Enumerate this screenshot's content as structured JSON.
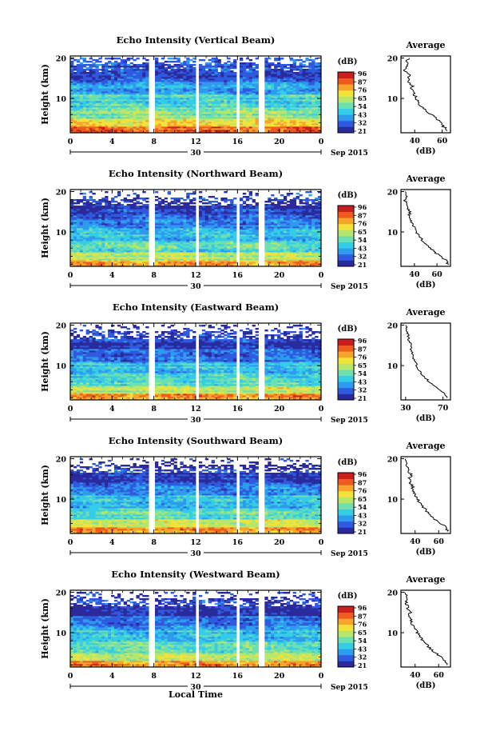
{
  "figure": {
    "xlabel_bottom": "Local Time",
    "date_label": "Sep 2015",
    "day_label": "30"
  },
  "colorbar": {
    "unit": "(dB)",
    "colors": [
      "#2a2a9c",
      "#2f5ae0",
      "#2f9bef",
      "#35cde6",
      "#6ee0b0",
      "#b6e66a",
      "#f2e23a",
      "#f7a52c",
      "#ee5a20",
      "#c81e1e"
    ]
  },
  "chart_data": [
    {
      "type": "heatmap",
      "title": "Echo Intensity (Vertical Beam)",
      "ylabel": "Height (km)",
      "xlabel": "",
      "x_ticks": [
        "0",
        "4",
        "8",
        "12",
        "16",
        "20",
        "0"
      ],
      "y_ticks": [
        "20",
        "10"
      ],
      "xlim": [
        0,
        24
      ],
      "ylim": [
        1.5,
        20.5
      ],
      "colorbar_ticks": [
        "96",
        "87",
        "76",
        "65",
        "54",
        "43",
        "32",
        "21"
      ],
      "data_gaps_hours": [
        [
          5.6,
          5.8
        ],
        [
          7.6,
          8.0
        ],
        [
          12.0,
          12.3
        ],
        [
          15.8,
          16.1
        ],
        [
          17.9,
          18.5
        ]
      ],
      "profile": {
        "title": "Average",
        "xlabel": "(dB)",
        "x_ticks": [
          "40",
          "60"
        ],
        "xlim": [
          30,
          66
        ],
        "y_ticks": [
          "20",
          "10"
        ],
        "ylim": [
          1.5,
          20.5
        ],
        "height_km": [
          2,
          3,
          4,
          5,
          6,
          7,
          8,
          9,
          10,
          11,
          12,
          13,
          14,
          15,
          16,
          17,
          18,
          19,
          20
        ],
        "db": [
          64,
          61,
          60,
          56,
          52,
          48,
          45,
          43,
          41,
          40,
          38,
          38,
          36,
          35,
          36,
          33,
          35,
          34,
          36
        ]
      }
    },
    {
      "type": "heatmap",
      "title": "Echo Intensity (Northward Beam)",
      "ylabel": "Height (km)",
      "xlabel": "",
      "x_ticks": [
        "0",
        "4",
        "8",
        "12",
        "16",
        "20",
        "0"
      ],
      "y_ticks": [
        "20",
        "10"
      ],
      "xlim": [
        0,
        24
      ],
      "ylim": [
        1.5,
        20.5
      ],
      "colorbar_ticks": [
        "96",
        "87",
        "76",
        "65",
        "54",
        "43",
        "32",
        "21"
      ],
      "data_gaps_hours": [
        [
          5.6,
          5.8
        ],
        [
          7.6,
          8.0
        ],
        [
          12.0,
          12.3
        ],
        [
          15.8,
          16.1
        ],
        [
          17.9,
          18.5
        ]
      ],
      "profile": {
        "title": "Average",
        "xlabel": "(dB)",
        "x_ticks": [
          "40",
          "60"
        ],
        "xlim": [
          28,
          72
        ],
        "y_ticks": [
          "20",
          "10"
        ],
        "ylim": [
          1.5,
          20.5
        ],
        "height_km": [
          2,
          3,
          4,
          5,
          6,
          7,
          8,
          9,
          10,
          11,
          12,
          13,
          14,
          15,
          16,
          17,
          18,
          19,
          20
        ],
        "db": [
          70,
          68,
          63,
          58,
          54,
          50,
          47,
          44,
          42,
          40,
          38,
          37,
          35,
          36,
          33,
          34,
          31,
          33,
          32
        ]
      }
    },
    {
      "type": "heatmap",
      "title": "Echo Intensity (Eastward Beam)",
      "ylabel": "Height (km)",
      "xlabel": "",
      "x_ticks": [
        "0",
        "4",
        "8",
        "12",
        "16",
        "20",
        "0"
      ],
      "y_ticks": [
        "20",
        "10"
      ],
      "xlim": [
        0,
        24
      ],
      "ylim": [
        1.5,
        20.5
      ],
      "colorbar_ticks": [
        "96",
        "87",
        "76",
        "65",
        "54",
        "43",
        "32",
        "21"
      ],
      "data_gaps_hours": [
        [
          5.6,
          5.8
        ],
        [
          7.6,
          8.0
        ],
        [
          12.0,
          12.3
        ],
        [
          15.8,
          16.1
        ],
        [
          17.9,
          18.5
        ]
      ],
      "profile": {
        "title": "Average",
        "xlabel": "(dB)",
        "x_ticks": [
          "30",
          "70"
        ],
        "xlim": [
          25,
          78
        ],
        "y_ticks": [
          "20",
          "10"
        ],
        "ylim": [
          1.5,
          20.5
        ],
        "height_km": [
          2,
          3,
          4,
          5,
          6,
          7,
          8,
          9,
          10,
          11,
          12,
          13,
          14,
          15,
          16,
          17,
          18,
          19,
          20
        ],
        "db": [
          74,
          72,
          66,
          60,
          55,
          51,
          47,
          44,
          42,
          40,
          38,
          37,
          35,
          36,
          34,
          33,
          32,
          31,
          30
        ]
      }
    },
    {
      "type": "heatmap",
      "title": "Echo Intensity (Southward Beam)",
      "ylabel": "Height (km)",
      "xlabel": "",
      "x_ticks": [
        "0",
        "4",
        "8",
        "12",
        "16",
        "20",
        "0"
      ],
      "y_ticks": [
        "20",
        "10"
      ],
      "xlim": [
        0,
        24
      ],
      "ylim": [
        1.5,
        20.5
      ],
      "colorbar_ticks": [
        "96",
        "87",
        "76",
        "65",
        "54",
        "43",
        "32",
        "21"
      ],
      "data_gaps_hours": [
        [
          5.6,
          5.8
        ],
        [
          7.6,
          8.0
        ],
        [
          12.0,
          12.3
        ],
        [
          15.8,
          16.1
        ],
        [
          17.9,
          18.5
        ]
      ],
      "profile": {
        "title": "Average",
        "xlabel": "(dB)",
        "x_ticks": [
          "40",
          "60"
        ],
        "xlim": [
          28,
          70
        ],
        "y_ticks": [
          "20",
          "10"
        ],
        "ylim": [
          1.5,
          20.5
        ],
        "height_km": [
          2,
          3,
          4,
          5,
          6,
          7,
          8,
          9,
          10,
          11,
          12,
          13,
          14,
          15,
          16,
          17,
          18,
          19,
          20
        ],
        "db": [
          68,
          66,
          62,
          57,
          53,
          50,
          47,
          44,
          42,
          40,
          38,
          38,
          36,
          35,
          37,
          34,
          33,
          34,
          32
        ]
      }
    },
    {
      "type": "heatmap",
      "title": "Echo Intensity (Westward Beam)",
      "ylabel": "Height (km)",
      "xlabel": "Local Time",
      "x_ticks": [
        "0",
        "4",
        "8",
        "12",
        "16",
        "20",
        "0"
      ],
      "y_ticks": [
        "20",
        "10"
      ],
      "xlim": [
        0,
        24
      ],
      "ylim": [
        1.5,
        20.5
      ],
      "colorbar_ticks": [
        "96",
        "87",
        "76",
        "65",
        "54",
        "43",
        "32",
        "21"
      ],
      "data_gaps_hours": [
        [
          5.6,
          5.8
        ],
        [
          7.6,
          8.0
        ],
        [
          12.0,
          12.3
        ],
        [
          15.8,
          16.1
        ],
        [
          17.9,
          18.5
        ]
      ],
      "profile": {
        "title": "Average",
        "xlabel": "(dB)",
        "x_ticks": [
          "40",
          "60"
        ],
        "xlim": [
          28,
          70
        ],
        "y_ticks": [
          "20",
          "10"
        ],
        "ylim": [
          1.5,
          20.5
        ],
        "height_km": [
          2,
          3,
          4,
          5,
          6,
          7,
          8,
          9,
          10,
          11,
          12,
          13,
          14,
          15,
          16,
          17,
          18,
          19,
          20
        ],
        "db": [
          68,
          66,
          62,
          57,
          53,
          50,
          47,
          44,
          42,
          40,
          38,
          37,
          35,
          36,
          34,
          33,
          32,
          33,
          31
        ]
      }
    }
  ]
}
